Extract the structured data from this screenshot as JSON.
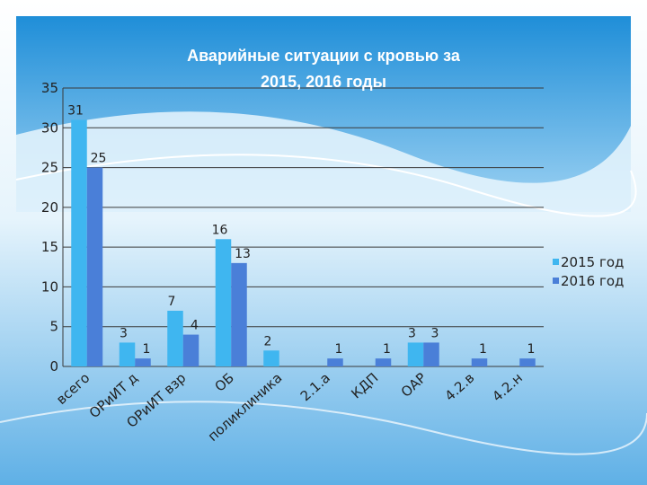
{
  "chart_data": {
    "type": "bar",
    "title": "Аварийные ситуации с кровью за 2015, 2016 годы",
    "categories": [
      "всего",
      "ОРиИТ д",
      "ОРиИТ взр",
      "ОБ",
      "поликлиника",
      "2.1.а",
      "КДП",
      "ОАР",
      "4.2.в",
      "4.2.н"
    ],
    "series": [
      {
        "name": "2015 год",
        "color": "#3fb6f0",
        "values": [
          31,
          3,
          7,
          16,
          2,
          null,
          null,
          3,
          null,
          null
        ]
      },
      {
        "name": "2016 год",
        "color": "#4a7fd8",
        "values": [
          25,
          1,
          4,
          13,
          null,
          1,
          1,
          3,
          1,
          1
        ]
      }
    ],
    "ylim": [
      0,
      35
    ],
    "yticks": [
      0,
      5,
      10,
      15,
      20,
      25,
      30,
      35
    ],
    "grid": true,
    "legend": "right"
  }
}
